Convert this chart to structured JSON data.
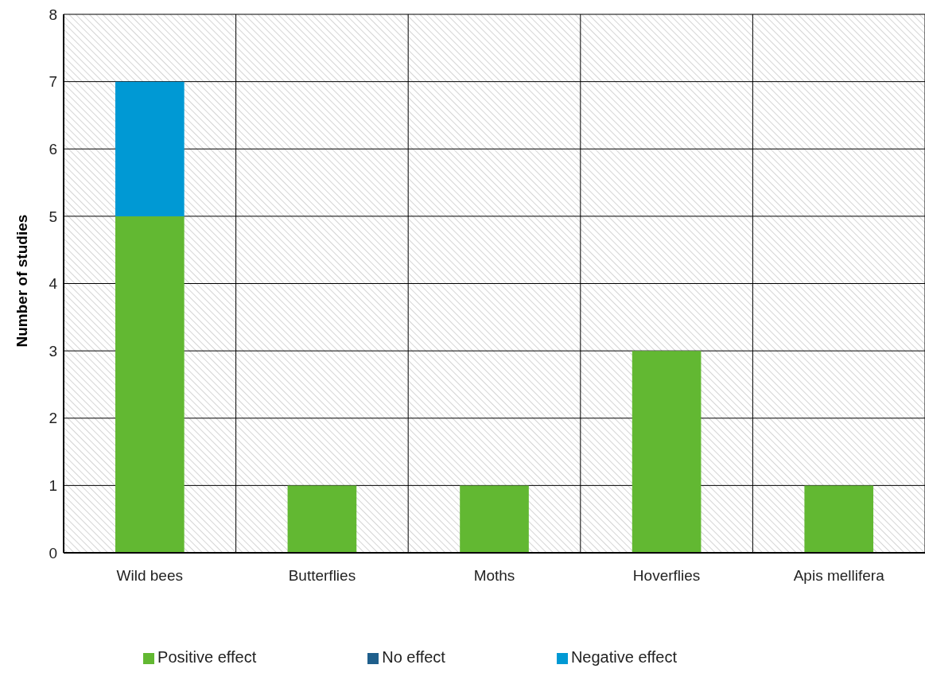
{
  "chart_data": {
    "type": "bar",
    "ylabel": "Number of studies",
    "categories": [
      "Wild bees",
      "Butterflies",
      "Moths",
      "Hoverflies",
      "Apis mellifera"
    ],
    "series": [
      {
        "name": "Positive effect",
        "color": "#62b832",
        "values": [
          5,
          1,
          1,
          3,
          1
        ]
      },
      {
        "name": "No effect",
        "color": "#1f5f8c",
        "values": [
          0,
          0,
          0,
          0,
          0
        ]
      },
      {
        "name": "Negative effect",
        "color": "#0099d4",
        "values": [
          2,
          0,
          0,
          0,
          0
        ]
      }
    ],
    "stacked": true,
    "ylim": [
      0,
      8
    ],
    "yticks": [
      0,
      1,
      2,
      3,
      4,
      5,
      6,
      7,
      8
    ],
    "grid": true,
    "legend": "bottom"
  }
}
